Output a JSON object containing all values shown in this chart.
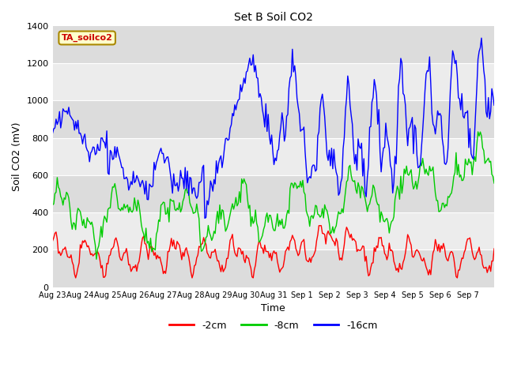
{
  "title": "Set B Soil CO2",
  "ylabel": "Soil CO2 (mV)",
  "xlabel": "Time",
  "legend_title": "TA_soilco2",
  "ylim": [
    0,
    1400
  ],
  "band_colors_alt": [
    "#dcdcdc",
    "#ececec"
  ],
  "line_colors": [
    "#ff0000",
    "#00cc00",
    "#0000ff"
  ],
  "legend_entries": [
    "-2cm",
    "-8cm",
    "-16cm"
  ],
  "tick_labels": [
    "Aug 23",
    "Aug 24",
    "Aug 25",
    "Aug 26",
    "Aug 27",
    "Aug 28",
    "Aug 29",
    "Aug 30",
    "Aug 31",
    "Sep 1",
    "Sep 2",
    "Sep 3",
    "Sep 4",
    "Sep 5",
    "Sep 6",
    "Sep 7"
  ],
  "title_fontsize": 10,
  "axis_fontsize": 9,
  "tick_fontsize": 7,
  "legend_box_facecolor": "#ffffcc",
  "legend_box_edgecolor": "#aa8800",
  "legend_title_color": "#cc0000"
}
